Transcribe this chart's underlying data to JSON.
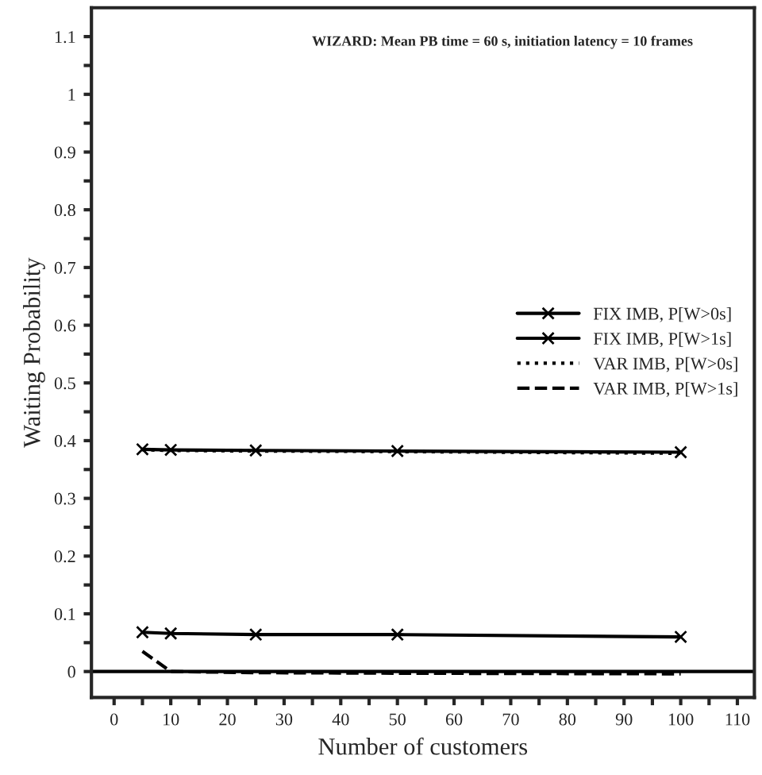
{
  "chart_data": {
    "type": "line",
    "annotations": [
      "WIZARD: Mean PB time = 60 s, initiation latency = 10 frames"
    ],
    "xlabel": "Number of customers",
    "ylabel": "Waiting Probability",
    "x": [
      5,
      10,
      25,
      50,
      100
    ],
    "series": [
      {
        "name": "FIX IMB, P[W>0s]",
        "color": "#000000",
        "values": [
          0.385,
          0.384,
          0.383,
          0.382,
          0.38
        ],
        "marker": "cross",
        "line_style": "solid"
      },
      {
        "name": "FIX IMB, P[W>1s]",
        "color": "#000000",
        "values": [
          0.068,
          0.066,
          0.064,
          0.064,
          0.06
        ],
        "marker": "cross",
        "line_style": "solid"
      },
      {
        "name": "VAR IMB, P[W>0s]",
        "color": "#000000",
        "values": [
          0.384,
          0.383,
          0.382,
          0.381,
          0.378
        ],
        "marker": "none",
        "line_style": "dotted"
      },
      {
        "name": "VAR IMB, P[W>1s]",
        "color": "#000000",
        "values": [
          0.035,
          0.0,
          -0.002,
          -0.003,
          -0.004
        ],
        "marker": "none",
        "line_style": "dashed"
      }
    ],
    "ref_lines": [
      {
        "axis": "y",
        "value": 0,
        "color": "#000000",
        "line_style": "solid"
      }
    ],
    "xlim": [
      -4,
      113
    ],
    "xticks": [
      0,
      {
        "value": 5,
        "label": null
      },
      10,
      {
        "value": 15,
        "label": null
      },
      20,
      {
        "value": 25,
        "label": null
      },
      30,
      {
        "value": 35,
        "label": null
      },
      40,
      {
        "value": 45,
        "label": null
      },
      50,
      {
        "value": 55,
        "label": null
      },
      60,
      {
        "value": 65,
        "label": null
      },
      70,
      {
        "value": 75,
        "label": null
      },
      80,
      {
        "value": 85,
        "label": null
      },
      90,
      {
        "value": 95,
        "label": null
      },
      100,
      {
        "value": 105,
        "label": null
      },
      110
    ],
    "ylim": [
      -0.045,
      1.15
    ],
    "yticks": [
      0,
      {
        "value": 0.05,
        "label": null
      },
      0.1,
      {
        "value": 0.15,
        "label": null
      },
      0.2,
      {
        "value": 0.25,
        "label": null
      },
      0.3,
      {
        "value": 0.35,
        "label": null
      },
      0.4,
      {
        "value": 0.45,
        "label": null
      },
      0.5,
      {
        "value": 0.55,
        "label": null
      },
      0.6,
      {
        "value": 0.65,
        "label": null
      },
      0.7,
      {
        "value": 0.75,
        "label": null
      },
      0.8,
      {
        "value": 0.85,
        "label": null
      },
      0.9,
      {
        "value": 0.95,
        "label": null
      },
      1,
      {
        "value": 1.05,
        "label": null
      },
      1.1
    ],
    "grid": false,
    "legend": "right"
  }
}
